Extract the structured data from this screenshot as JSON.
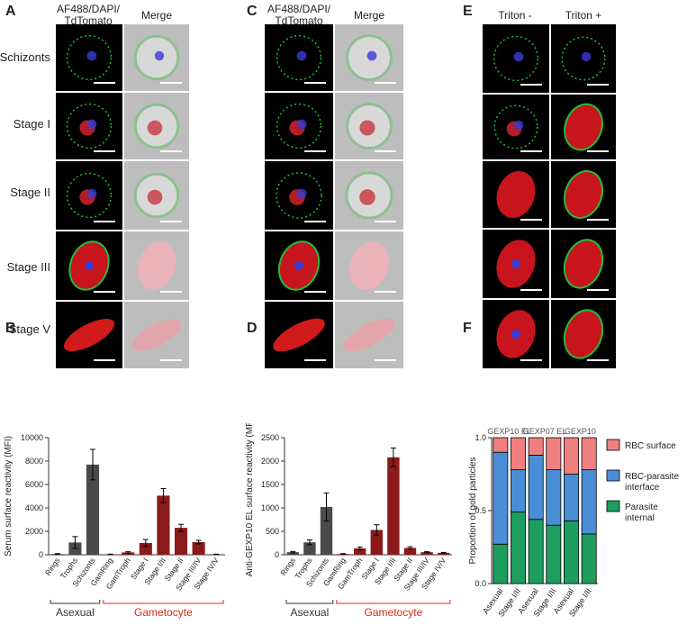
{
  "panel_letters": {
    "A": "A",
    "B": "B",
    "C": "C",
    "D": "D",
    "E": "E",
    "F": "F"
  },
  "panelA": {
    "col_headers": [
      "AF488/DAPI/\nTdTomato",
      "Merge"
    ],
    "rows": [
      "Schizonts",
      "Stage I",
      "Stage II",
      "Stage III",
      "Stage V"
    ]
  },
  "panelC": {
    "col_headers": [
      "AF488/DAPI/\nTdTomato",
      "Merge"
    ]
  },
  "panelE": {
    "col_headers": [
      "Triton -",
      "Triton +"
    ]
  },
  "colors": {
    "asexual_bar": "#4a4a4a",
    "gametocyte_bar": "#8b1a1a",
    "gametocyte_label": "#d9261c",
    "rbc_surface": "#f08080",
    "rbc_parasite_interface": "#4a8fd6",
    "parasite_internal": "#1e9e5e"
  },
  "chart_data": [
    {
      "panel": "B",
      "type": "bar",
      "ylabel": "Serum surface reactivity (MFI)",
      "ylim": [
        0,
        10000
      ],
      "yticks": [
        0,
        2000,
        4000,
        6000,
        8000,
        10000
      ],
      "categories": [
        "Rings",
        "Trophs",
        "Schizonts",
        "GamRing",
        "GamTroph",
        "Stage I",
        "Stage I/II",
        "Stage II",
        "Stage III/IV",
        "Stage IV/V"
      ],
      "values": [
        60,
        1050,
        7700,
        30,
        200,
        1000,
        5050,
        2300,
        1080,
        30
      ],
      "errors": [
        40,
        500,
        1300,
        20,
        60,
        300,
        600,
        300,
        150,
        20
      ],
      "groups": [
        {
          "label": "Asexual",
          "from": 0,
          "to": 2
        },
        {
          "label": "Gametocyte",
          "from": 3,
          "to": 9
        }
      ]
    },
    {
      "panel": "D",
      "type": "bar",
      "ylabel": "Anti-GEXP10 EL surface reactivity (MFI)",
      "ylim": [
        0,
        2500
      ],
      "yticks": [
        0,
        500,
        1000,
        1500,
        2000,
        2500
      ],
      "categories": [
        "Rings",
        "Trophs",
        "Schizonts",
        "GamRing",
        "GamTroph",
        "Stage I",
        "Stage I/II",
        "Stage II",
        "Stage III/IV",
        "Stage IV/V"
      ],
      "values": [
        55,
        265,
        1020,
        15,
        135,
        530,
        2080,
        145,
        55,
        40
      ],
      "errors": [
        15,
        50,
        300,
        10,
        30,
        110,
        200,
        25,
        10,
        10
      ],
      "groups": [
        {
          "label": "Asexual",
          "from": 0,
          "to": 2
        },
        {
          "label": "Gametocyte",
          "from": 3,
          "to": 9
        }
      ]
    },
    {
      "panel": "F",
      "type": "bar",
      "stacked": true,
      "ylabel": "Proportion of gold particles",
      "ylim": [
        0,
        1.0
      ],
      "yticks": [
        0.0,
        0.5,
        1.0
      ],
      "categories": [
        "Asexual",
        "Stage I/II",
        "Asexual",
        "Stage I/II",
        "Asexual",
        "Stage I/II"
      ],
      "group_labels": [
        "GEXP10 EL",
        "GEXP07 EL",
        "GEXP10"
      ],
      "series": [
        {
          "name": "Parasite internal",
          "values": [
            0.27,
            0.49,
            0.44,
            0.4,
            0.43,
            0.34
          ]
        },
        {
          "name": "RBC-parasite interface",
          "values": [
            0.63,
            0.29,
            0.44,
            0.38,
            0.32,
            0.44
          ]
        },
        {
          "name": "RBC surface",
          "values": [
            0.1,
            0.22,
            0.12,
            0.22,
            0.25,
            0.22
          ]
        }
      ],
      "legend": [
        "RBC surface",
        "RBC-parasite\ninterface",
        "Parasite\ninternal"
      ]
    }
  ]
}
